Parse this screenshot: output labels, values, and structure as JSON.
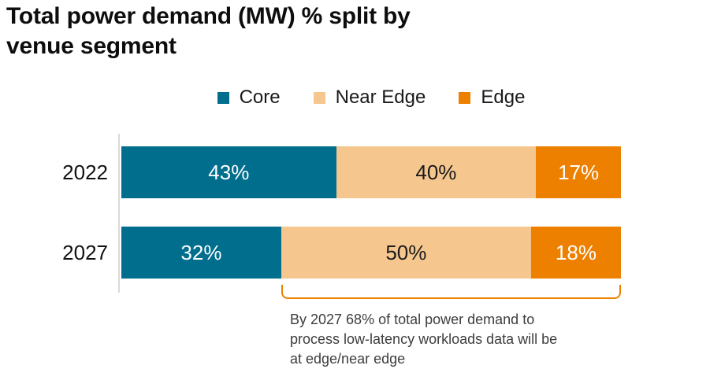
{
  "title": "Total power demand (MW) % split by\nvenue segment",
  "legend": {
    "items": [
      {
        "label": "Core",
        "color": "#006E8C"
      },
      {
        "label": "Near Edge",
        "color": "#F5C78F"
      },
      {
        "label": "Edge",
        "color": "#EE8000"
      }
    ]
  },
  "chart_data": {
    "type": "bar",
    "orientation": "horizontal",
    "stacked": true,
    "title": "Total power demand (MW) % split by venue segment",
    "categories": [
      "2022",
      "2027"
    ],
    "series": [
      {
        "name": "Core",
        "color": "#006E8C",
        "values": [
          43,
          32
        ]
      },
      {
        "name": "Near Edge",
        "color": "#F5C78F",
        "values": [
          40,
          50
        ]
      },
      {
        "name": "Edge",
        "color": "#EE8000",
        "values": [
          17,
          18
        ]
      }
    ],
    "rows": [
      {
        "label": "2022",
        "segments": [
          {
            "series": "Core",
            "value": 43,
            "display": "43%"
          },
          {
            "series": "Near Edge",
            "value": 40,
            "display": "40%"
          },
          {
            "series": "Edge",
            "value": 17,
            "display": "17%"
          }
        ]
      },
      {
        "label": "2027",
        "segments": [
          {
            "series": "Core",
            "value": 32,
            "display": "32%"
          },
          {
            "series": "Near Edge",
            "value": 50,
            "display": "50%"
          },
          {
            "series": "Edge",
            "value": 18,
            "display": "18%"
          }
        ]
      }
    ],
    "xlim": [
      0,
      100
    ],
    "unit": "%",
    "grid": false,
    "legend_position": "top-center"
  },
  "annotation": {
    "text": "By 2027 68% of total power demand to\nprocess low-latency workloads data will be\nat edge/near edge",
    "bracket_color": "#EE8000",
    "bracket": {
      "left_percent": 32,
      "width_percent": 68
    }
  }
}
